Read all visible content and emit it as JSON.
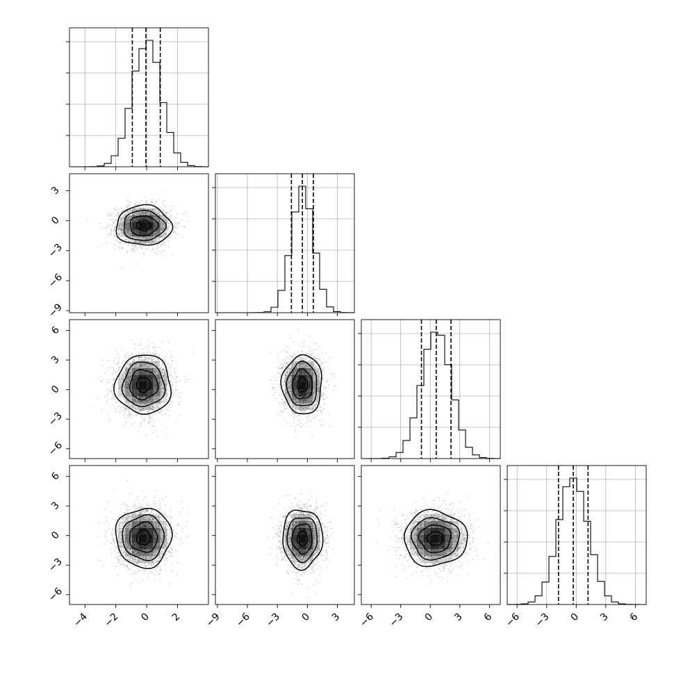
{
  "chart_data": {
    "type": "corner",
    "variables": 4,
    "grid": true,
    "axis_ranges": [
      [
        -5.0,
        4.0
      ],
      [
        -9.2,
        4.7
      ],
      [
        -7.0,
        7.1
      ],
      [
        -7.0,
        7.1
      ]
    ],
    "ticks": [
      {
        "values": [
          -4,
          -2,
          0,
          2
        ],
        "labels": [
          "−4",
          "−2",
          "0",
          "2"
        ]
      },
      {
        "values": [
          -9,
          -6,
          -3,
          0,
          3
        ],
        "labels": [
          "−9",
          "−6",
          "−3",
          "0",
          "3"
        ]
      },
      {
        "values": [
          -6,
          -3,
          0,
          3,
          6
        ],
        "labels": [
          "−6",
          "−3",
          "0",
          "3",
          "6"
        ]
      },
      {
        "values": [
          -6,
          -3,
          0,
          3,
          6
        ],
        "labels": [
          "−6",
          "−3",
          "0",
          "3",
          "6"
        ]
      }
    ],
    "marginals": [
      {
        "mean": 0.0,
        "std": 0.93,
        "quantiles": [
          -0.93,
          -0.05,
          0.88
        ]
      },
      {
        "mean": -0.5,
        "std": 1.1,
        "quantiles": [
          -1.6,
          -0.5,
          0.6
        ]
      },
      {
        "mean": 0.6,
        "std": 1.5,
        "quantiles": [
          -0.9,
          0.6,
          2.1
        ]
      },
      {
        "mean": -0.3,
        "std": 1.5,
        "quantiles": [
          -1.8,
          -0.3,
          1.2
        ]
      }
    ],
    "quantile_levels": [
      0.16,
      0.5,
      0.84
    ],
    "contour_levels_sigma": [
      0.5,
      1.0,
      1.5,
      2.0
    ],
    "pairs": [
      {
        "x_var": 0,
        "y_var": 1,
        "center": [
          -0.2,
          -0.5
        ],
        "sx": 0.9,
        "sy": 1.0,
        "rho": 0.0
      },
      {
        "x_var": 0,
        "y_var": 2,
        "center": [
          -0.2,
          0.5
        ],
        "sx": 0.9,
        "sy": 1.5,
        "rho": 0.0
      },
      {
        "x_var": 1,
        "y_var": 2,
        "center": [
          -0.5,
          0.5
        ],
        "sx": 1.0,
        "sy": 1.5,
        "rho": 0.0
      },
      {
        "x_var": 0,
        "y_var": 3,
        "center": [
          -0.2,
          -0.2
        ],
        "sx": 0.9,
        "sy": 1.5,
        "rho": 0.0
      },
      {
        "x_var": 1,
        "y_var": 3,
        "center": [
          -0.5,
          -0.3
        ],
        "sx": 1.0,
        "sy": 1.5,
        "rho": 0.0
      },
      {
        "x_var": 2,
        "y_var": 3,
        "center": [
          0.5,
          -0.3
        ],
        "sx": 1.6,
        "sy": 1.4,
        "rho": 0.0
      }
    ],
    "colors": {
      "line": "#000000",
      "grid": "#b0b0b0",
      "density": "#000000",
      "scatter": "#7f7f7f"
    }
  }
}
